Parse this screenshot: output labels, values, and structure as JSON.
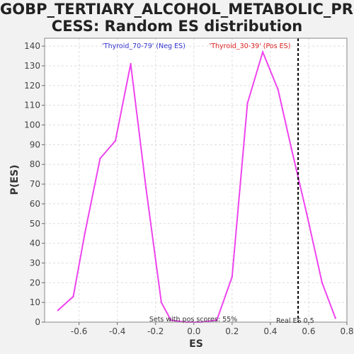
{
  "title_line1": "GOBP_TERTIARY_ALCOHOL_METABOLIC_PRO",
  "title_line2": "CESS: Random ES distribution",
  "chart_data": {
    "type": "line",
    "xlabel": "ES",
    "ylabel": "P(ES)",
    "xlim": [
      -0.78,
      0.8
    ],
    "ylim": [
      0,
      144
    ],
    "xticks": [
      -0.6,
      -0.4,
      -0.2,
      0.0,
      0.2,
      0.4,
      0.6,
      0.8
    ],
    "yticks": [
      0,
      10,
      20,
      30,
      40,
      50,
      60,
      70,
      80,
      90,
      100,
      110,
      120,
      130,
      140
    ],
    "grid": true,
    "series": [
      {
        "color": "#ee44ee",
        "x": [
          -0.71,
          -0.63,
          -0.57,
          -0.49,
          -0.41,
          -0.33,
          -0.25,
          -0.17,
          -0.12,
          -0.04,
          0.04,
          0.12,
          0.2,
          0.28,
          0.36,
          0.44,
          0.51,
          0.59,
          0.67,
          0.74
        ],
        "y": [
          6,
          13,
          45,
          83,
          92,
          131,
          68,
          10,
          1,
          0,
          0,
          1,
          23,
          111,
          137,
          118,
          88,
          55,
          20,
          2
        ]
      }
    ],
    "real_es": 0.5,
    "real_es_color": "#000000",
    "annotations": {
      "neg_label": "'Thyroid_70-79' (Neg ES)",
      "neg_color": "#3333cc",
      "pos_label": "'Thyroid_30-39' (Pos ES)",
      "pos_color": "#dd2222",
      "pos_scores": "Sets with pos scores: 55%",
      "real_es_label": "Real ES 0.5"
    }
  }
}
